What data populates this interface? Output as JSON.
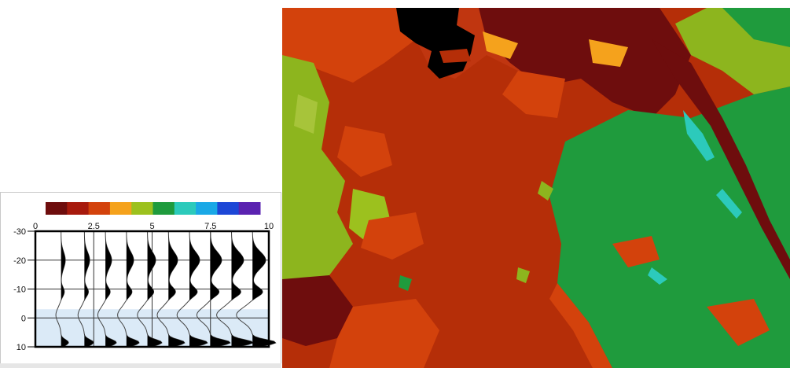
{
  "colorbar": {
    "colors": [
      "#6e0d0d",
      "#a71a0d",
      "#d3420c",
      "#f5a21c",
      "#9cc11e",
      "#1f9b3d",
      "#2ccabb",
      "#1aa8e6",
      "#1d47d6",
      "#5a22b0"
    ]
  },
  "x_axis": {
    "ticks": [
      {
        "value": 0,
        "label": "0"
      },
      {
        "value": 2.5,
        "label": "2.5"
      },
      {
        "value": 5,
        "label": "5"
      },
      {
        "value": 7.5,
        "label": "7.5"
      },
      {
        "value": 10,
        "label": "10"
      }
    ],
    "range": [
      0,
      10
    ]
  },
  "y_axis": {
    "ticks": [
      {
        "value": -30,
        "label": "-30"
      },
      {
        "value": -20,
        "label": "-20"
      },
      {
        "value": -10,
        "label": "-10"
      },
      {
        "value": 0,
        "label": "0"
      },
      {
        "value": 10,
        "label": "10"
      }
    ],
    "range": [
      -30,
      10
    ]
  },
  "wavelet_traces": {
    "count": 10,
    "baselines": [
      1.1,
      2.1,
      3.0,
      3.9,
      4.8,
      5.7,
      6.6,
      7.5,
      8.4,
      9.3
    ]
  },
  "map": {
    "palette": {
      "dark_red": "#6e0d0d",
      "red": "#a71a0d",
      "base_red": "#b52e08",
      "orange": "#d3420c",
      "amber": "#f5a21c",
      "lime": "#8db51e",
      "green": "#1f9b3d",
      "cyan": "#2ccabb",
      "black": "#000000"
    }
  }
}
